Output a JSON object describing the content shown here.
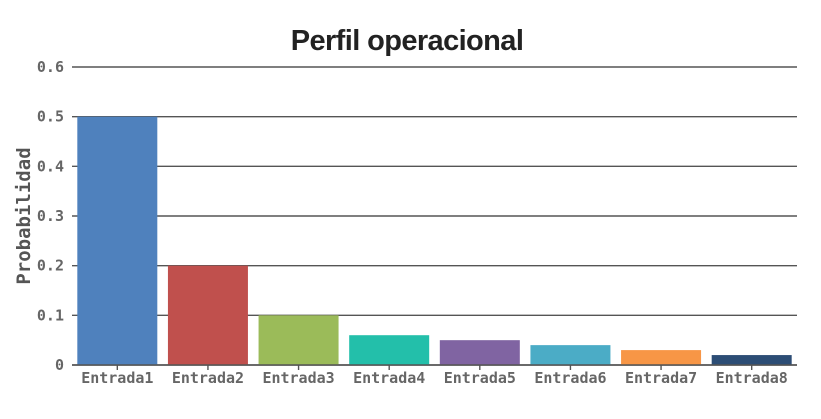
{
  "chart_data": {
    "type": "bar",
    "title": "Perfil operacional",
    "xlabel": "",
    "ylabel": "Probabilidad",
    "categories": [
      "Entrada1",
      "Entrada2",
      "Entrada3",
      "Entrada4",
      "Entrada5",
      "Entrada6",
      "Entrada7",
      "Entrada8"
    ],
    "values": [
      0.5,
      0.2,
      0.1,
      0.06,
      0.05,
      0.04,
      0.03,
      0.02
    ],
    "ylim": [
      0,
      0.6
    ],
    "yticks": [
      "0",
      "0.1",
      "0.2",
      "0.3",
      "0.4",
      "0.5",
      "0.6"
    ],
    "grid": true,
    "legend": "none",
    "colors": [
      "#4f81bd",
      "#c0504d",
      "#9bbb59",
      "#23bfaa",
      "#8064a2",
      "#4bacc6",
      "#f79646",
      "#2c4d75"
    ]
  }
}
